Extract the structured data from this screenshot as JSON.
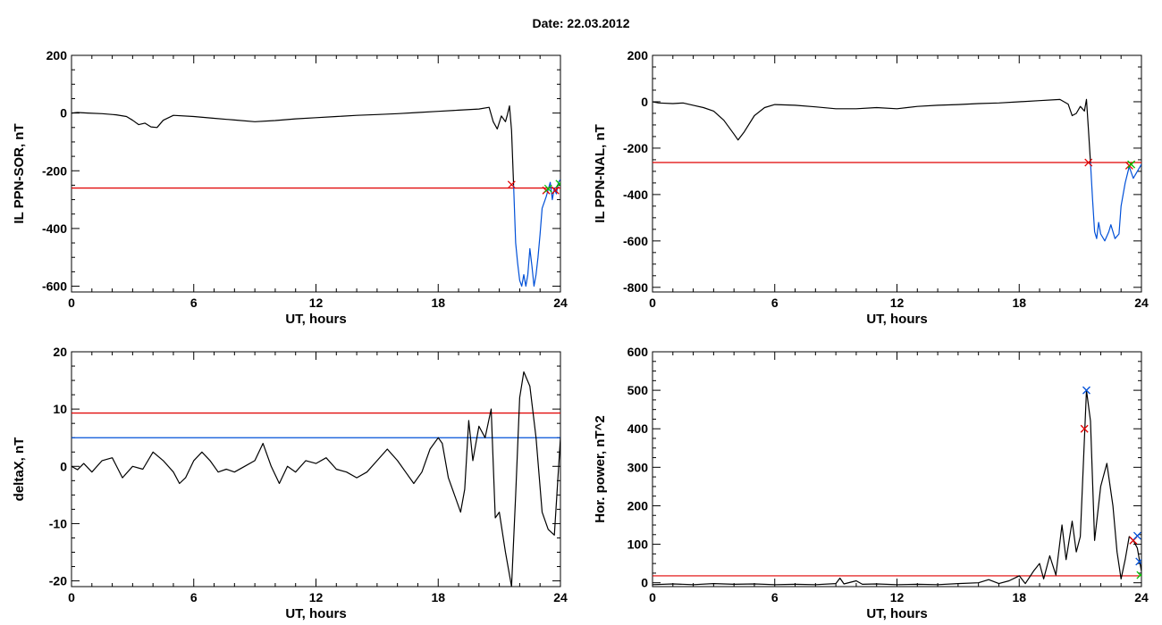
{
  "page": {
    "title": "Date:  22.03.2012"
  },
  "colors": {
    "red": "#e00000",
    "blue": "#0050d8",
    "green": "#00c000",
    "black": "#000000"
  },
  "chart_data": [
    {
      "id": "il-sor",
      "type": "line",
      "xlabel": "UT, hours",
      "ylabel": "IL PPN-SOR, nT",
      "xlim": [
        0,
        24
      ],
      "ylim": [
        -620,
        200
      ],
      "xticks": [
        0,
        6,
        12,
        18,
        24
      ],
      "yticks": [
        -600,
        -400,
        -200,
        0,
        200
      ],
      "hlines": [
        {
          "y": -260,
          "color": "#e00000"
        }
      ],
      "series": [
        {
          "color": "#000000",
          "points": [
            [
              0,
              0
            ],
            [
              0.3,
              2
            ],
            [
              0.8,
              0
            ],
            [
              1.5,
              -2
            ],
            [
              2.2,
              -6
            ],
            [
              2.7,
              -12
            ],
            [
              3.0,
              -25
            ],
            [
              3.3,
              -40
            ],
            [
              3.6,
              -35
            ],
            [
              3.9,
              -48
            ],
            [
              4.2,
              -50
            ],
            [
              4.5,
              -25
            ],
            [
              5.0,
              -8
            ],
            [
              6.0,
              -12
            ],
            [
              7.0,
              -18
            ],
            [
              8.0,
              -24
            ],
            [
              9.0,
              -30
            ],
            [
              10.0,
              -26
            ],
            [
              11.0,
              -20
            ],
            [
              12.0,
              -16
            ],
            [
              13.0,
              -12
            ],
            [
              14.0,
              -8
            ],
            [
              15.0,
              -5
            ],
            [
              16.0,
              -2
            ],
            [
              17.0,
              2
            ],
            [
              18.0,
              6
            ],
            [
              19.0,
              10
            ],
            [
              20.0,
              14
            ],
            [
              20.5,
              20
            ],
            [
              20.7,
              -30
            ],
            [
              20.9,
              -55
            ],
            [
              21.1,
              -10
            ],
            [
              21.3,
              -30
            ],
            [
              21.4,
              -5
            ],
            [
              21.5,
              25
            ],
            [
              21.6,
              -60
            ],
            [
              21.7,
              -250
            ]
          ]
        },
        {
          "color": "#0050d8",
          "points": [
            [
              21.7,
              -250
            ],
            [
              21.8,
              -450
            ],
            [
              21.9,
              -520
            ],
            [
              22.0,
              -580
            ],
            [
              22.1,
              -600
            ],
            [
              22.2,
              -560
            ],
            [
              22.3,
              -600
            ],
            [
              22.4,
              -560
            ],
            [
              22.5,
              -470
            ],
            [
              22.6,
              -530
            ],
            [
              22.7,
              -600
            ],
            [
              22.8,
              -560
            ],
            [
              22.9,
              -500
            ],
            [
              23.0,
              -420
            ],
            [
              23.1,
              -330
            ],
            [
              23.3,
              -290
            ],
            [
              23.5,
              -240
            ],
            [
              23.6,
              -300
            ],
            [
              23.7,
              -260
            ],
            [
              23.8,
              -280
            ],
            [
              23.9,
              -240
            ],
            [
              24.0,
              -230
            ]
          ]
        }
      ],
      "markers": [
        {
          "x": 21.6,
          "y": -248,
          "color": "#e00000"
        },
        {
          "x": 23.3,
          "y": -268,
          "color": "#e00000"
        },
        {
          "x": 23.75,
          "y": -268,
          "color": "#e00000"
        },
        {
          "x": 23.4,
          "y": -262,
          "color": "#00c000"
        },
        {
          "x": 23.95,
          "y": -245,
          "color": "#00c000"
        }
      ]
    },
    {
      "id": "il-nal",
      "type": "line",
      "xlabel": "UT, hours",
      "ylabel": "IL PPN-NAL, nT",
      "xlim": [
        0,
        24
      ],
      "ylim": [
        -820,
        200
      ],
      "xticks": [
        0,
        6,
        12,
        18,
        24
      ],
      "yticks": [
        -800,
        -600,
        -400,
        -200,
        0,
        200
      ],
      "hlines": [
        {
          "y": -262,
          "color": "#e00000"
        }
      ],
      "series": [
        {
          "color": "#000000",
          "points": [
            [
              0,
              0
            ],
            [
              0.3,
              -5
            ],
            [
              1.0,
              -8
            ],
            [
              1.5,
              -5
            ],
            [
              2.0,
              -15
            ],
            [
              2.5,
              -25
            ],
            [
              3.0,
              -40
            ],
            [
              3.5,
              -80
            ],
            [
              4.0,
              -140
            ],
            [
              4.2,
              -165
            ],
            [
              4.5,
              -130
            ],
            [
              5.0,
              -60
            ],
            [
              5.5,
              -25
            ],
            [
              6.0,
              -12
            ],
            [
              7.0,
              -15
            ],
            [
              8.0,
              -22
            ],
            [
              9.0,
              -30
            ],
            [
              10.0,
              -30
            ],
            [
              11.0,
              -25
            ],
            [
              12.0,
              -30
            ],
            [
              13.0,
              -20
            ],
            [
              14.0,
              -15
            ],
            [
              15.0,
              -12
            ],
            [
              16.0,
              -8
            ],
            [
              17.0,
              -5
            ],
            [
              18.0,
              0
            ],
            [
              19.0,
              5
            ],
            [
              20.0,
              10
            ],
            [
              20.4,
              -10
            ],
            [
              20.6,
              -60
            ],
            [
              20.8,
              -50
            ],
            [
              21.0,
              -20
            ],
            [
              21.2,
              -40
            ],
            [
              21.3,
              10
            ],
            [
              21.4,
              -120
            ],
            [
              21.5,
              -262
            ]
          ]
        },
        {
          "color": "#0050d8",
          "points": [
            [
              21.5,
              -262
            ],
            [
              21.6,
              -420
            ],
            [
              21.7,
              -560
            ],
            [
              21.8,
              -590
            ],
            [
              21.9,
              -520
            ],
            [
              22.0,
              -570
            ],
            [
              22.2,
              -600
            ],
            [
              22.4,
              -560
            ],
            [
              22.5,
              -530
            ],
            [
              22.7,
              -590
            ],
            [
              22.9,
              -570
            ],
            [
              23.0,
              -450
            ],
            [
              23.2,
              -350
            ],
            [
              23.4,
              -280
            ],
            [
              23.6,
              -330
            ],
            [
              23.8,
              -300
            ],
            [
              24.0,
              -270
            ]
          ]
        }
      ],
      "markers": [
        {
          "x": 21.4,
          "y": -262,
          "color": "#e00000"
        },
        {
          "x": 23.4,
          "y": -275,
          "color": "#e00000"
        },
        {
          "x": 23.5,
          "y": -270,
          "color": "#00c000"
        }
      ]
    },
    {
      "id": "deltax",
      "type": "line",
      "xlabel": "UT, hours",
      "ylabel": "deltaX, nT",
      "xlim": [
        0,
        24
      ],
      "ylim": [
        -21,
        20
      ],
      "xticks": [
        0,
        6,
        12,
        18,
        24
      ],
      "yticks": [
        -20,
        -10,
        0,
        10,
        20
      ],
      "hlines": [
        {
          "y": 9.3,
          "color": "#e00000"
        },
        {
          "y": 5.0,
          "color": "#0050d8"
        }
      ],
      "series": [
        {
          "color": "#000000",
          "points": [
            [
              0,
              0
            ],
            [
              0.3,
              -0.6
            ],
            [
              0.6,
              0.5
            ],
            [
              1.0,
              -1
            ],
            [
              1.5,
              1
            ],
            [
              2.0,
              1.5
            ],
            [
              2.5,
              -2
            ],
            [
              3.0,
              0
            ],
            [
              3.5,
              -0.5
            ],
            [
              4.0,
              2.5
            ],
            [
              4.5,
              1
            ],
            [
              5.0,
              -1
            ],
            [
              5.3,
              -3
            ],
            [
              5.6,
              -2
            ],
            [
              6.0,
              1
            ],
            [
              6.4,
              2.5
            ],
            [
              6.8,
              1
            ],
            [
              7.2,
              -1
            ],
            [
              7.6,
              -0.5
            ],
            [
              8.0,
              -1
            ],
            [
              8.5,
              0
            ],
            [
              9.0,
              1
            ],
            [
              9.4,
              4
            ],
            [
              9.8,
              0
            ],
            [
              10.2,
              -3
            ],
            [
              10.6,
              0
            ],
            [
              11.0,
              -1
            ],
            [
              11.5,
              1
            ],
            [
              12.0,
              0.5
            ],
            [
              12.5,
              1.5
            ],
            [
              13.0,
              -0.5
            ],
            [
              13.5,
              -1
            ],
            [
              14.0,
              -2
            ],
            [
              14.5,
              -1
            ],
            [
              15.0,
              1
            ],
            [
              15.5,
              3
            ],
            [
              16.0,
              1
            ],
            [
              16.4,
              -1
            ],
            [
              16.8,
              -3
            ],
            [
              17.2,
              -1
            ],
            [
              17.6,
              3
            ],
            [
              18.0,
              5
            ],
            [
              18.2,
              4
            ],
            [
              18.5,
              -2
            ],
            [
              18.8,
              -5
            ],
            [
              19.1,
              -8
            ],
            [
              19.3,
              -4
            ],
            [
              19.5,
              8
            ],
            [
              19.7,
              1
            ],
            [
              20.0,
              7
            ],
            [
              20.3,
              5
            ],
            [
              20.6,
              10
            ],
            [
              20.8,
              -9
            ],
            [
              21.0,
              -8
            ],
            [
              21.3,
              -15
            ],
            [
              21.6,
              -21
            ],
            [
              21.8,
              -5
            ],
            [
              22.0,
              12
            ],
            [
              22.2,
              16.5
            ],
            [
              22.5,
              14
            ],
            [
              22.8,
              5
            ],
            [
              23.1,
              -8
            ],
            [
              23.4,
              -11
            ],
            [
              23.7,
              -12
            ],
            [
              24.0,
              5
            ]
          ]
        }
      ],
      "markers": []
    },
    {
      "id": "hor-power",
      "type": "line",
      "xlabel": "UT, hours",
      "ylabel": "Hor. power, nT^2",
      "xlim": [
        0,
        24
      ],
      "ylim": [
        -10,
        600
      ],
      "xticks": [
        0,
        6,
        12,
        18,
        24
      ],
      "yticks": [
        0,
        100,
        200,
        300,
        400,
        500,
        600
      ],
      "hlines": [
        {
          "y": 18,
          "color": "#e00000"
        }
      ],
      "series": [
        {
          "color": "#000000",
          "points": [
            [
              0,
              -5
            ],
            [
              1,
              -3
            ],
            [
              2,
              -5
            ],
            [
              3,
              -2
            ],
            [
              4,
              -4
            ],
            [
              5,
              -3
            ],
            [
              6,
              -5
            ],
            [
              7,
              -4
            ],
            [
              8,
              -5
            ],
            [
              9,
              -2
            ],
            [
              9.2,
              12
            ],
            [
              9.4,
              -3
            ],
            [
              10,
              5
            ],
            [
              10.3,
              -4
            ],
            [
              11,
              -3
            ],
            [
              12,
              -5
            ],
            [
              13,
              -4
            ],
            [
              14,
              -5
            ],
            [
              15,
              -2
            ],
            [
              16,
              0
            ],
            [
              16.5,
              8
            ],
            [
              17,
              -2
            ],
            [
              17.5,
              5
            ],
            [
              18,
              18
            ],
            [
              18.3,
              -2
            ],
            [
              18.7,
              30
            ],
            [
              19.0,
              50
            ],
            [
              19.2,
              10
            ],
            [
              19.5,
              70
            ],
            [
              19.8,
              20
            ],
            [
              20.1,
              150
            ],
            [
              20.3,
              60
            ],
            [
              20.6,
              160
            ],
            [
              20.8,
              80
            ],
            [
              21.0,
              120
            ],
            [
              21.3,
              500
            ],
            [
              21.5,
              420
            ],
            [
              21.7,
              110
            ],
            [
              22.0,
              250
            ],
            [
              22.3,
              310
            ],
            [
              22.6,
              200
            ],
            [
              22.8,
              80
            ],
            [
              23.0,
              10
            ],
            [
              23.2,
              60
            ],
            [
              23.4,
              120
            ],
            [
              23.6,
              110
            ],
            [
              23.8,
              90
            ],
            [
              24.0,
              30
            ]
          ]
        }
      ],
      "markers": [
        {
          "x": 21.2,
          "y": 400,
          "color": "#e00000"
        },
        {
          "x": 21.3,
          "y": 500,
          "color": "#0050d8"
        },
        {
          "x": 23.6,
          "y": 110,
          "color": "#e00000"
        },
        {
          "x": 23.8,
          "y": 122,
          "color": "#0050d8"
        },
        {
          "x": 23.9,
          "y": 55,
          "color": "#0050d8"
        },
        {
          "x": 23.95,
          "y": 20,
          "color": "#00c000"
        }
      ]
    }
  ]
}
